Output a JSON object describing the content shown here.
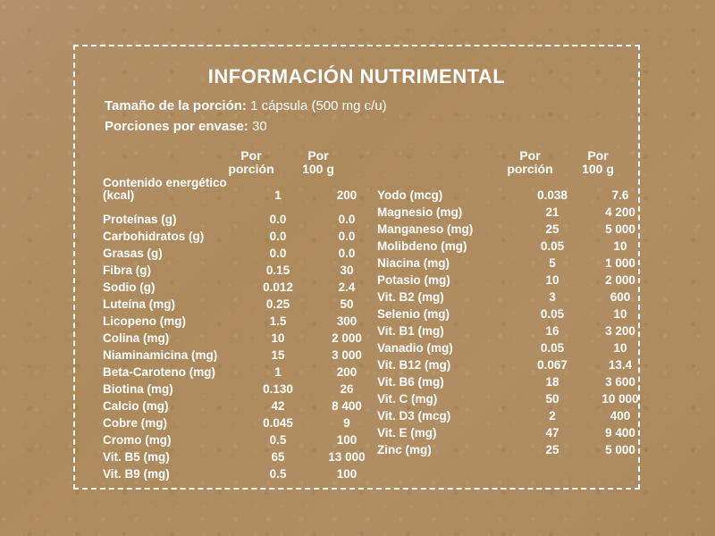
{
  "title": "INFORMACIÓN NUTRIMENTAL",
  "serving_size": {
    "label": "Tamaño de la porción:",
    "value": " 1 cápsula (500 mg c/u)"
  },
  "servings_per_container": {
    "label": "Porciones por envase:",
    "value": " 30"
  },
  "headers": {
    "per_serving": [
      "Por",
      "porción"
    ],
    "per_100g": [
      "Por",
      "100 g"
    ]
  },
  "left_rows": [
    {
      "name": "Contenido energético (kcal)",
      "per_serving": "1",
      "per_100g": "200"
    },
    {
      "name": "Proteínas (g)",
      "per_serving": "0.0",
      "per_100g": "0.0"
    },
    {
      "name": "Carbohidratos (g)",
      "per_serving": "0.0",
      "per_100g": "0.0"
    },
    {
      "name": "Grasas (g)",
      "per_serving": "0.0",
      "per_100g": "0.0"
    },
    {
      "name": "Fibra (g)",
      "per_serving": "0.15",
      "per_100g": "30"
    },
    {
      "name": "Sodio (g)",
      "per_serving": "0.012",
      "per_100g": "2.4"
    },
    {
      "name": "Luteína (mg)",
      "per_serving": "0.25",
      "per_100g": "50"
    },
    {
      "name": "Licopeno (mg)",
      "per_serving": "1.5",
      "per_100g": "300"
    },
    {
      "name": "Colina (mg)",
      "per_serving": "10",
      "per_100g": "2 000"
    },
    {
      "name": "Niaminamicina (mg)",
      "per_serving": "15",
      "per_100g": "3 000"
    },
    {
      "name": "Beta-Caroteno (mg)",
      "per_serving": "1",
      "per_100g": "200"
    },
    {
      "name": "Biotina (mg)",
      "per_serving": "0.130",
      "per_100g": "26"
    },
    {
      "name": "Calcio (mg)",
      "per_serving": "42",
      "per_100g": "8 400"
    },
    {
      "name": "Cobre (mg)",
      "per_serving": "0.045",
      "per_100g": "9"
    },
    {
      "name": "Cromo (mg)",
      "per_serving": "0.5",
      "per_100g": "100"
    },
    {
      "name": "Vit. B5 (mg)",
      "per_serving": "65",
      "per_100g": "13 000"
    },
    {
      "name": "Vit. B9 (mg)",
      "per_serving": "0.5",
      "per_100g": "100"
    }
  ],
  "right_rows": [
    {
      "name": "Yodo (mcg)",
      "per_serving": "0.038",
      "per_100g": "7.6"
    },
    {
      "name": "Magnesio (mg)",
      "per_serving": "21",
      "per_100g": "4 200"
    },
    {
      "name": "Manganeso (mg)",
      "per_serving": "25",
      "per_100g": "5 000"
    },
    {
      "name": "Molibdeno (mg)",
      "per_serving": "0.05",
      "per_100g": "10"
    },
    {
      "name": "Niacina (mg)",
      "per_serving": "5",
      "per_100g": "1 000"
    },
    {
      "name": "Potasio (mg)",
      "per_serving": "10",
      "per_100g": "2 000"
    },
    {
      "name": "Vit. B2 (mg)",
      "per_serving": "3",
      "per_100g": "600"
    },
    {
      "name": "Selenio (mg)",
      "per_serving": "0.05",
      "per_100g": "10"
    },
    {
      "name": "Vit. B1 (mg)",
      "per_serving": "16",
      "per_100g": "3 200"
    },
    {
      "name": "Vanadio (mg)",
      "per_serving": "0.05",
      "per_100g": "10"
    },
    {
      "name": "Vit. B12 (mg)",
      "per_serving": "0.067",
      "per_100g": "13.4"
    },
    {
      "name": "Vit. B6 (mg)",
      "per_serving": "18",
      "per_100g": "3 600"
    },
    {
      "name": "Vit. C (mg)",
      "per_serving": "50",
      "per_100g": "10 000"
    },
    {
      "name": "Vit. D3 (mcg)",
      "per_serving": "2",
      "per_100g": "400"
    },
    {
      "name": "Vit. E (mg)",
      "per_serving": "47",
      "per_100g": "9 400"
    },
    {
      "name": "Zinc (mg)",
      "per_serving": "25",
      "per_100g": "5 000"
    }
  ],
  "colors": {
    "background": "#b08c60",
    "text": "#ffffff",
    "border": "#ffffff"
  }
}
